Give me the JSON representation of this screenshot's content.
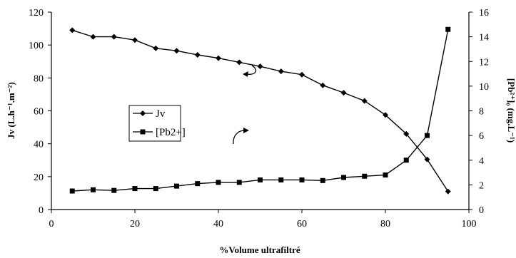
{
  "chart_data": {
    "type": "line",
    "xlabel": "%Volume ultrafiltré",
    "ylabel_left": "Jv (L.h⁻¹.m⁻²)",
    "ylabel_right": "[Pb²⁺]₀ (mg.L⁻¹)",
    "xlim": [
      0,
      100
    ],
    "ylim_left": [
      0,
      120
    ],
    "ylim_right": [
      0,
      16
    ],
    "xticks": [
      "0",
      "20",
      "40",
      "60",
      "80",
      "100"
    ],
    "yticks_left": [
      "0",
      "20",
      "40",
      "60",
      "80",
      "100",
      "120"
    ],
    "yticks_right": [
      "0",
      "2",
      "4",
      "6",
      "8",
      "10",
      "12",
      "14",
      "16"
    ],
    "grid": false,
    "legend_position": "middle-left",
    "series": [
      {
        "name": "Jv",
        "axis": "left",
        "marker": "diamond",
        "color": "#000000",
        "x": [
          5,
          10,
          15,
          20,
          25,
          30,
          35,
          40,
          45,
          50,
          55,
          60,
          65,
          70,
          75,
          80,
          85,
          90,
          95
        ],
        "y": [
          109,
          105,
          105,
          103,
          98,
          96.5,
          94,
          92,
          89.5,
          87,
          84,
          82,
          75.5,
          71,
          66,
          57.5,
          46,
          30.5,
          11
        ]
      },
      {
        "name": "[Pb2+]",
        "axis": "right",
        "marker": "square",
        "color": "#000000",
        "x": [
          5,
          10,
          15,
          20,
          25,
          30,
          35,
          40,
          45,
          50,
          55,
          60,
          65,
          70,
          75,
          80,
          85,
          90,
          95
        ],
        "y": [
          1.5,
          1.6,
          1.55,
          1.7,
          1.7,
          1.9,
          2.1,
          2.2,
          2.2,
          2.4,
          2.4,
          2.4,
          2.35,
          2.6,
          2.7,
          2.8,
          4.0,
          6.0,
          14.6
        ]
      }
    ]
  }
}
